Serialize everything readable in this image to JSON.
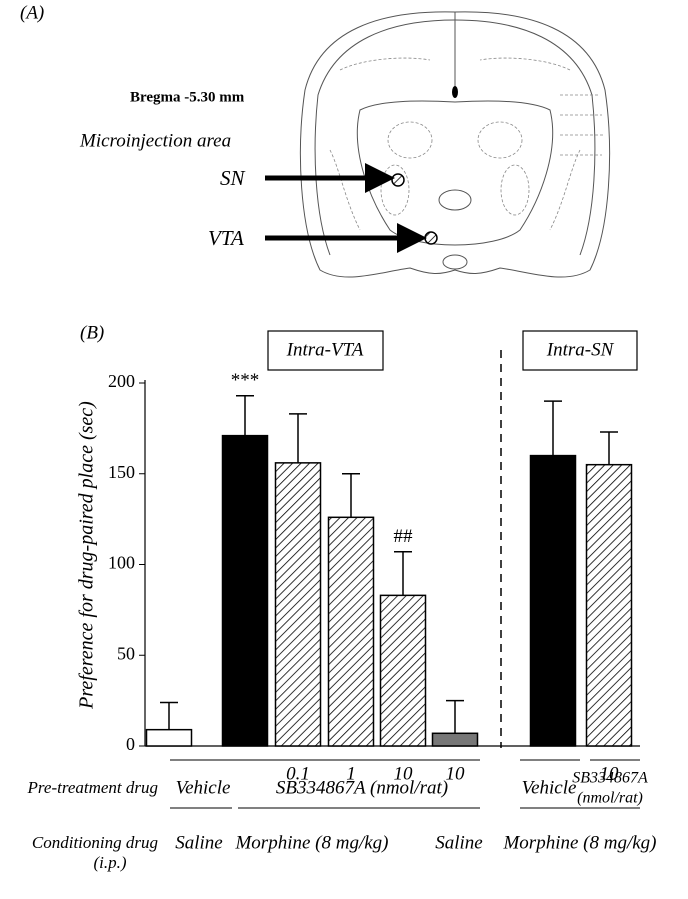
{
  "panel_a": {
    "label": "(A)",
    "bregma": "Bregma -5.30 mm",
    "caption": "Microinjection area",
    "sites": [
      "SN",
      "VTA"
    ]
  },
  "chart_data": {
    "type": "bar",
    "panel_label": "(B)",
    "ylabel": "Preference for drug-paired place (sec)",
    "groups": [
      "Intra-VTA",
      "Intra-SN"
    ],
    "values": [
      9,
      171,
      156,
      126,
      83,
      7,
      160,
      155
    ],
    "errors": [
      15,
      22,
      27,
      24,
      24,
      18,
      30,
      18
    ],
    "fills": [
      "#ffffff",
      "#000000",
      "hatch",
      "hatch",
      "hatch",
      "#777777",
      "#000000",
      "hatch"
    ],
    "annotations": [
      null,
      "***",
      null,
      null,
      "##",
      null,
      null,
      null
    ],
    "doses": [
      null,
      null,
      "0.1",
      "1",
      "10",
      "10",
      null,
      "10"
    ],
    "ylim": [
      0,
      200
    ],
    "yticks": [
      0,
      50,
      100,
      150,
      200
    ],
    "pretreatment_label": "Pre-treatment drug",
    "pretreatment": [
      [
        "Vehicle"
      ],
      [
        "SB334867A (nmol/rat)"
      ],
      [
        "Vehicle"
      ],
      [
        "SB334867A",
        "(nmol/rat)"
      ]
    ],
    "conditioning_label": [
      "Conditioning drug",
      "(i.p.)"
    ],
    "conditioning": [
      "Saline",
      "Morphine (8 mg/kg)",
      "Saline",
      "Morphine (8 mg/kg)"
    ]
  }
}
